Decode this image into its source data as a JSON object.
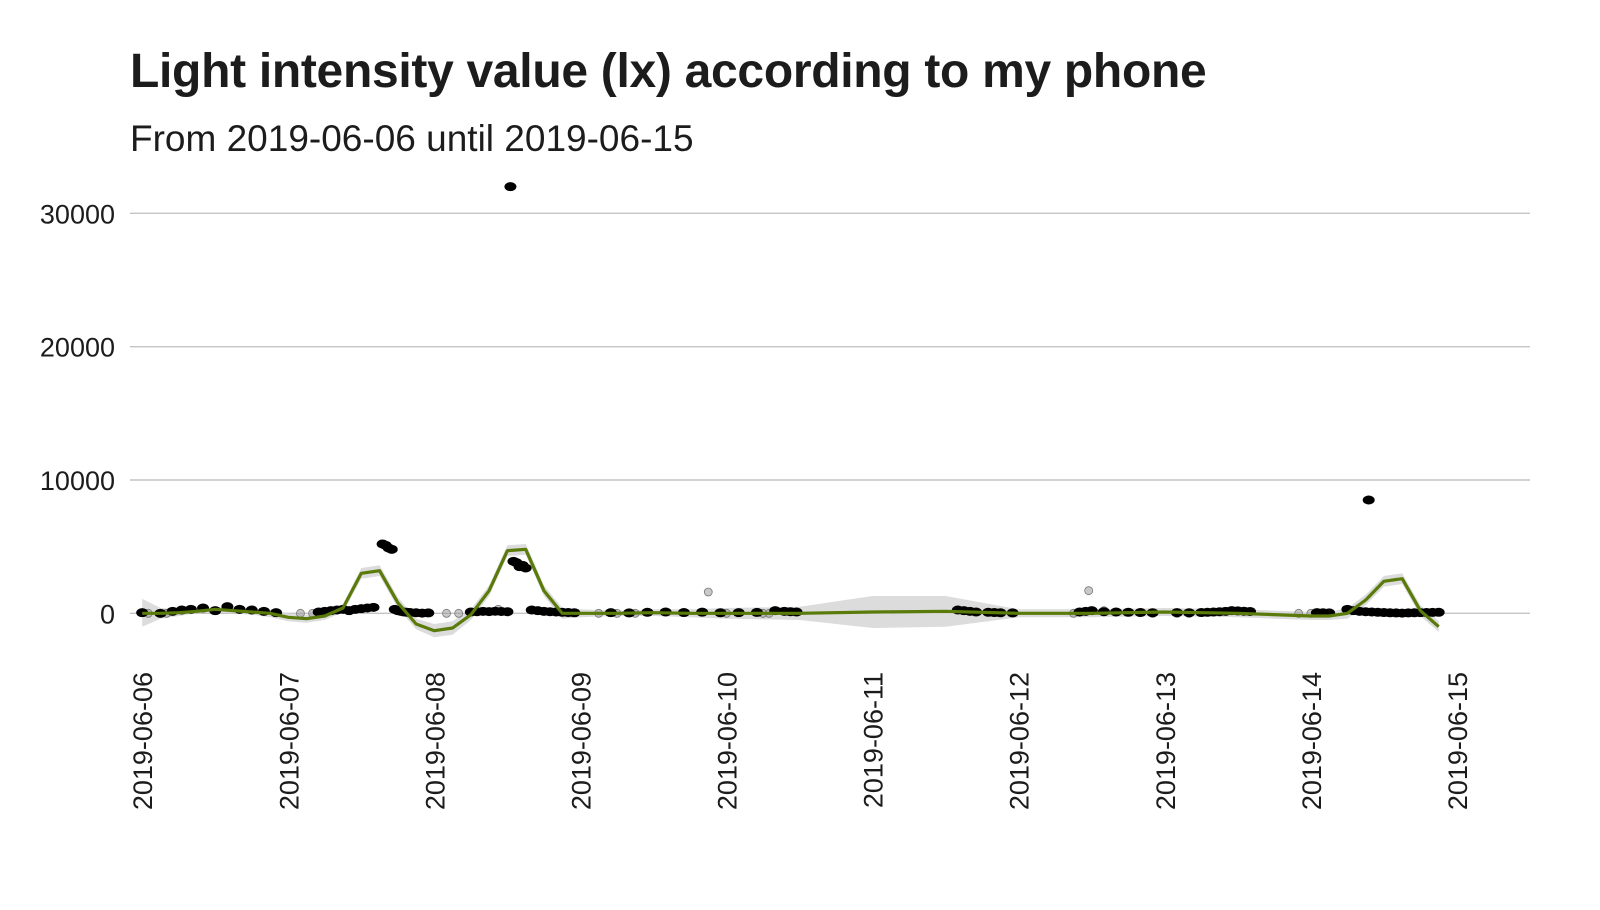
{
  "chart_data": {
    "type": "scatter",
    "title": "Light intensity value (lx) according to my phone",
    "subtitle": "From 2019-06-06 until 2019-06-15",
    "xlabel": "",
    "ylabel": "",
    "x_ticks": [
      "2019-06-06",
      "2019-06-07",
      "2019-06-08",
      "2019-06-09",
      "2019-06-10",
      "2019-06-11",
      "2019-06-12",
      "2019-06-13",
      "2019-06-14",
      "2019-06-15"
    ],
    "y_ticks": [
      0,
      10000,
      20000,
      30000
    ],
    "xlim": [
      "2019-06-05 22:00",
      "2019-06-15 12:00"
    ],
    "ylim": [
      -3500,
      34000
    ],
    "grid": true,
    "legend": "none",
    "colors": {
      "points": "#000000",
      "faded_points": "#9a9a9a",
      "trend": "#5a7a0a",
      "band": "#d6d6d6"
    },
    "series": [
      {
        "kind": "points",
        "x": [
          "2019-06-06 00:00",
          "2019-06-06 03:00",
          "2019-06-06 05:00",
          "2019-06-06 06:30",
          "2019-06-06 08:00",
          "2019-06-06 10:00",
          "2019-06-06 12:00",
          "2019-06-06 14:00",
          "2019-06-06 16:00",
          "2019-06-06 18:00",
          "2019-06-06 20:00",
          "2019-06-06 22:00",
          "2019-06-07 05:00",
          "2019-06-07 06:00",
          "2019-06-07 07:00",
          "2019-06-07 08:00",
          "2019-06-07 09:00",
          "2019-06-07 10:00",
          "2019-06-07 11:00",
          "2019-06-07 12:00",
          "2019-06-07 13:00",
          "2019-06-07 14:00",
          "2019-06-07 15:30",
          "2019-06-07 16:00",
          "2019-06-07 16:30",
          "2019-06-07 17:00",
          "2019-06-07 17:30",
          "2019-06-07 18:00",
          "2019-06-07 18:30",
          "2019-06-07 19:00",
          "2019-06-07 19:30",
          "2019-06-07 20:00",
          "2019-06-07 21:00",
          "2019-06-07 22:00",
          "2019-06-07 23:00",
          "2019-06-08 06:00",
          "2019-06-08 07:00",
          "2019-06-08 08:00",
          "2019-06-08 09:00",
          "2019-06-08 10:00",
          "2019-06-08 11:00",
          "2019-06-08 12:00",
          "2019-06-08 13:00",
          "2019-06-08 13:30",
          "2019-06-08 14:00",
          "2019-06-08 14:30",
          "2019-06-08 15:00",
          "2019-06-08 16:00",
          "2019-06-08 17:00",
          "2019-06-08 18:00",
          "2019-06-08 19:00",
          "2019-06-08 20:00",
          "2019-06-08 21:00",
          "2019-06-08 22:00",
          "2019-06-08 23:00",
          "2019-06-09 05:00",
          "2019-06-09 08:00",
          "2019-06-09 11:00",
          "2019-06-09 14:00",
          "2019-06-09 17:00",
          "2019-06-09 20:00",
          "2019-06-09 23:00",
          "2019-06-10 02:00",
          "2019-06-10 05:00",
          "2019-06-10 08:00",
          "2019-06-10 09:30",
          "2019-06-10 10:30",
          "2019-06-10 11:30",
          "2019-06-11 14:00",
          "2019-06-11 15:00",
          "2019-06-11 16:00",
          "2019-06-11 17:00",
          "2019-06-11 19:00",
          "2019-06-11 20:00",
          "2019-06-11 21:00",
          "2019-06-11 23:00",
          "2019-06-12 10:00",
          "2019-06-12 11:00",
          "2019-06-12 12:00",
          "2019-06-12 14:00",
          "2019-06-12 16:00",
          "2019-06-12 18:00",
          "2019-06-12 20:00",
          "2019-06-12 22:00",
          "2019-06-13 02:00",
          "2019-06-13 04:00",
          "2019-06-13 06:00",
          "2019-06-13 07:00",
          "2019-06-13 08:00",
          "2019-06-13 09:00",
          "2019-06-13 10:00",
          "2019-06-13 11:00",
          "2019-06-13 12:00",
          "2019-06-13 13:00",
          "2019-06-13 14:00",
          "2019-06-14 01:00",
          "2019-06-14 02:00",
          "2019-06-14 03:00",
          "2019-06-14 06:00",
          "2019-06-14 07:00",
          "2019-06-14 08:00",
          "2019-06-14 09:00",
          "2019-06-14 10:00",
          "2019-06-14 11:00",
          "2019-06-14 12:00",
          "2019-06-14 13:00",
          "2019-06-14 14:00",
          "2019-06-14 15:00",
          "2019-06-14 16:00",
          "2019-06-14 17:00",
          "2019-06-14 18:00",
          "2019-06-14 19:00",
          "2019-06-14 20:00",
          "2019-06-14 21:00",
          "2019-06-08 12:30",
          "2019-06-14 09:30"
        ],
        "y": [
          50,
          0,
          150,
          250,
          300,
          400,
          200,
          500,
          300,
          250,
          150,
          50,
          100,
          150,
          200,
          250,
          300,
          200,
          300,
          350,
          400,
          450,
          5200,
          5100,
          4900,
          4800,
          300,
          200,
          150,
          100,
          80,
          60,
          40,
          20,
          30,
          100,
          120,
          150,
          130,
          160,
          140,
          120,
          3900,
          3800,
          3500,
          3600,
          3400,
          250,
          200,
          150,
          120,
          100,
          80,
          60,
          40,
          50,
          30,
          80,
          100,
          60,
          90,
          40,
          50,
          70,
          200,
          150,
          120,
          100,
          250,
          200,
          150,
          100,
          80,
          60,
          40,
          30,
          100,
          150,
          200,
          120,
          100,
          80,
          60,
          40,
          50,
          40,
          60,
          80,
          100,
          120,
          150,
          200,
          180,
          160,
          140,
          50,
          40,
          30,
          300,
          200,
          150,
          120,
          100,
          80,
          60,
          40,
          30,
          20,
          30,
          40,
          50,
          60,
          70,
          80,
          32000,
          8500
        ]
      },
      {
        "kind": "faded_points",
        "x": [
          "2019-06-06 01:00",
          "2019-06-06 04:00",
          "2019-06-07 02:00",
          "2019-06-07 04:00",
          "2019-06-08 02:00",
          "2019-06-08 04:00",
          "2019-06-08 10:30",
          "2019-06-09 03:00",
          "2019-06-09 06:00",
          "2019-06-09 09:00",
          "2019-06-09 21:00",
          "2019-06-10 00:00",
          "2019-06-10 06:00",
          "2019-06-10 07:00",
          "2019-06-12 09:00",
          "2019-06-12 11:30",
          "2019-06-12 14:00",
          "2019-06-12 22:00",
          "2019-06-13 02:00",
          "2019-06-13 04:00",
          "2019-06-13 22:00",
          "2019-06-14 00:00"
        ],
        "y": [
          0,
          0,
          0,
          0,
          0,
          0,
          300,
          0,
          0,
          0,
          1600,
          0,
          0,
          0,
          0,
          1700,
          200,
          0,
          0,
          0,
          0,
          0
        ]
      },
      {
        "kind": "trend",
        "x": [
          "2019-06-06 00:00",
          "2019-06-06 03:00",
          "2019-06-06 06:00",
          "2019-06-06 09:00",
          "2019-06-06 12:00",
          "2019-06-06 15:00",
          "2019-06-06 18:00",
          "2019-06-06 21:00",
          "2019-06-07 00:00",
          "2019-06-07 03:00",
          "2019-06-07 06:00",
          "2019-06-07 09:00",
          "2019-06-07 12:00",
          "2019-06-07 15:00",
          "2019-06-07 18:00",
          "2019-06-07 21:00",
          "2019-06-08 00:00",
          "2019-06-08 03:00",
          "2019-06-08 06:00",
          "2019-06-08 09:00",
          "2019-06-08 12:00",
          "2019-06-08 15:00",
          "2019-06-08 18:00",
          "2019-06-08 21:00",
          "2019-06-09 00:00",
          "2019-06-09 06:00",
          "2019-06-09 12:00",
          "2019-06-09 18:00",
          "2019-06-10 00:00",
          "2019-06-10 12:00",
          "2019-06-11 00:00",
          "2019-06-11 12:00",
          "2019-06-12 00:00",
          "2019-06-12 12:00",
          "2019-06-13 00:00",
          "2019-06-13 12:00",
          "2019-06-14 00:00",
          "2019-06-14 03:00",
          "2019-06-14 06:00",
          "2019-06-14 09:00",
          "2019-06-14 12:00",
          "2019-06-14 15:00",
          "2019-06-14 18:00",
          "2019-06-14 21:00"
        ],
        "y": [
          0,
          0,
          50,
          150,
          300,
          200,
          100,
          0,
          -300,
          -400,
          -200,
          400,
          3000,
          3200,
          800,
          -800,
          -1300,
          -1100,
          -100,
          1700,
          4700,
          4800,
          1700,
          0,
          0,
          0,
          50,
          0,
          0,
          0,
          100,
          150,
          0,
          0,
          100,
          0,
          -200,
          -200,
          0,
          1000,
          2400,
          2600,
          200,
          -1000
        ],
        "band_lower": [
          -1000,
          -400,
          -200,
          0,
          100,
          0,
          -100,
          -300,
          -600,
          -700,
          -500,
          100,
          2600,
          2800,
          400,
          -1200,
          -1800,
          -1600,
          -500,
          1300,
          4300,
          4400,
          1300,
          -400,
          -300,
          -200,
          -200,
          -300,
          -400,
          -500,
          -1100,
          -1000,
          -300,
          -300,
          -200,
          -300,
          -500,
          -500,
          -400,
          600,
          2000,
          2200,
          -200,
          -1400
        ],
        "band_upper": [
          1100,
          400,
          300,
          300,
          500,
          400,
          300,
          300,
          0,
          -100,
          100,
          700,
          3400,
          3600,
          1200,
          -400,
          -800,
          -600,
          300,
          2100,
          5100,
          5200,
          2100,
          400,
          300,
          200,
          300,
          300,
          400,
          500,
          1300,
          1300,
          300,
          300,
          400,
          300,
          100,
          100,
          400,
          1400,
          2800,
          3000,
          600,
          -600
        ]
      }
    ]
  }
}
